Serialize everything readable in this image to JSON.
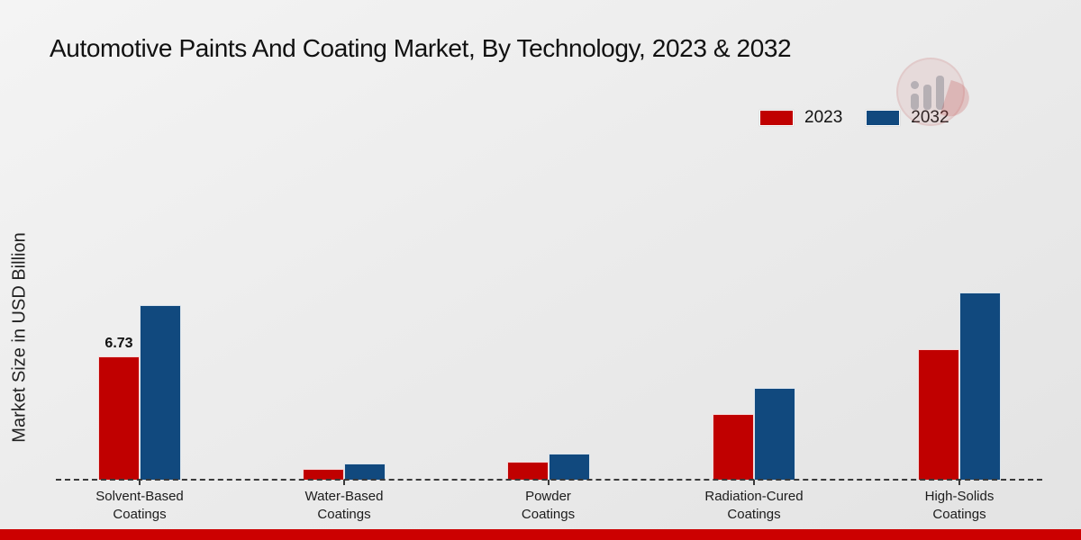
{
  "title": "Automotive Paints And Coating Market, By Technology, 2023 & 2032",
  "ylabel": "Market Size in USD Billion",
  "colors": {
    "series_2023": "#c00000",
    "series_2032": "#11497e",
    "bottom_strip": "#cc0000",
    "baseline": "#3a3a3a",
    "text": "#1a1a1a",
    "background": "#ececec"
  },
  "legend": {
    "position": "top-right",
    "items": [
      {
        "label": "2023",
        "color": "#c00000"
      },
      {
        "label": "2032",
        "color": "#11497e"
      }
    ]
  },
  "watermark": {
    "name": "market-research-future-logo"
  },
  "chart_data": {
    "type": "bar",
    "title": "Automotive Paints And Coating Market, By Technology, 2023 & 2032",
    "xlabel": "",
    "ylabel": "Market Size in USD Billion",
    "categories": [
      "Solvent-Based Coatings",
      "Water-Based Coatings",
      "Powder Coatings",
      "Radiation-Cured Coatings",
      "High-Solids Coatings"
    ],
    "series": [
      {
        "name": "2023",
        "color": "#c00000",
        "values": [
          6.73,
          0.6,
          1.0,
          3.6,
          7.1
        ],
        "data_labels": [
          "6.73",
          "",
          "",
          "",
          ""
        ]
      },
      {
        "name": "2032",
        "color": "#11497e",
        "values": [
          9.5,
          0.9,
          1.4,
          5.0,
          10.2
        ],
        "data_labels": [
          "",
          "",
          "",
          "",
          ""
        ]
      }
    ],
    "ylim": [
      0,
      10.5
    ],
    "grid": false,
    "axis_style": "dashed-baseline-only",
    "legend_position": "top-right",
    "unit": "USD Billion"
  }
}
